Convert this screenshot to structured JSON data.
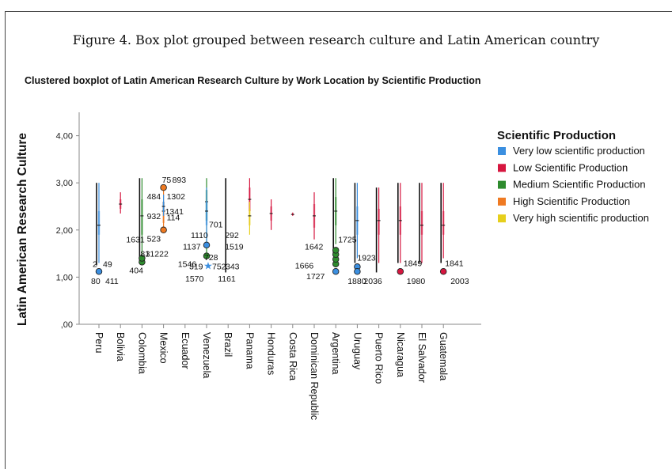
{
  "figure_caption": "Figure 4. Box plot grouped between research culture and Latin American country",
  "chart_data": {
    "type": "boxplot",
    "title": "Clustered boxplot of Latin American Research Culture by Work Location by Scientific Production",
    "ylabel": "Latin American Research Culture",
    "xlabel": "",
    "ylim": [
      0,
      4.5
    ],
    "yticks": [
      {
        "v": 0,
        "label": ",00"
      },
      {
        "v": 1,
        "label": "1,00"
      },
      {
        "v": 2,
        "label": "2,00"
      },
      {
        "v": 3,
        "label": "3,00"
      },
      {
        "v": 4,
        "label": "4,00"
      }
    ],
    "legend_title": "Scientific Production",
    "legend_position": "right",
    "series": [
      {
        "name": "Very low scientific production",
        "color": "#3b8fe0"
      },
      {
        "name": "Low Scientific Production",
        "color": "#d6163f"
      },
      {
        "name": "Medium Scientific Production",
        "color": "#2e8b2e"
      },
      {
        "name": "High Scientific Production",
        "color": "#ef7a22"
      },
      {
        "name": "Very high scientific production",
        "color": "#e6cf1c"
      }
    ],
    "categories": [
      "Peru",
      "Bolivia",
      "Colombia",
      "Mexico",
      "Ecuador",
      "Venezuela",
      "Brazil",
      "Panama",
      "Honduras",
      "Costa Rica",
      "Dominican Republic",
      "Argentina",
      "Uruguay",
      "Puerto Rico",
      "Nicaragua",
      "El Salvador",
      "Guatemala"
    ],
    "boxes": [
      {
        "country": 0,
        "series": 0,
        "min": 1.3,
        "q1": 1.9,
        "median": 2.1,
        "q3": 2.4,
        "max": 3.0
      },
      {
        "country": 1,
        "series": 1,
        "min": 2.35,
        "q1": 2.45,
        "median": 2.55,
        "q3": 2.65,
        "max": 2.8
      },
      {
        "country": 2,
        "series": 2,
        "min": 1.35,
        "q1": 1.9,
        "median": 2.3,
        "q3": 2.65,
        "max": 3.1
      },
      {
        "country": 3,
        "series": 3,
        "min": 2.0,
        "q1": 2.15,
        "median": 2.4,
        "q3": 2.6,
        "max": 2.85
      },
      {
        "country": 3,
        "series": 0,
        "min": 2.3,
        "q1": 2.4,
        "median": 2.5,
        "q3": 2.6,
        "max": 2.75
      },
      {
        "country": 5,
        "series": 2,
        "min": 1.45,
        "q1": 2.2,
        "median": 2.6,
        "q3": 2.85,
        "max": 3.1
      },
      {
        "country": 5,
        "series": 0,
        "min": 1.75,
        "q1": 2.1,
        "median": 2.4,
        "q3": 2.6,
        "max": 2.9
      },
      {
        "country": 7,
        "series": 1,
        "min": 2.1,
        "q1": 2.4,
        "median": 2.65,
        "q3": 2.9,
        "max": 3.1
      },
      {
        "country": 7,
        "series": 4,
        "min": 1.9,
        "q1": 2.1,
        "median": 2.3,
        "q3": 2.45,
        "max": 2.6
      },
      {
        "country": 8,
        "series": 1,
        "min": 2.0,
        "q1": 2.2,
        "median": 2.35,
        "q3": 2.5,
        "max": 2.65
      },
      {
        "country": 9,
        "series": 1,
        "min": 2.3,
        "q1": 2.32,
        "median": 2.33,
        "q3": 2.35,
        "max": 2.37
      },
      {
        "country": 10,
        "series": 1,
        "min": 1.8,
        "q1": 2.05,
        "median": 2.3,
        "q3": 2.55,
        "max": 2.8
      },
      {
        "country": 11,
        "series": 2,
        "min": 1.7,
        "q1": 2.1,
        "median": 2.4,
        "q3": 2.7,
        "max": 3.1
      },
      {
        "country": 12,
        "series": 0,
        "min": 1.4,
        "q1": 1.9,
        "median": 2.2,
        "q3": 2.5,
        "max": 3.0
      },
      {
        "country": 13,
        "series": 1,
        "min": 1.3,
        "q1": 1.9,
        "median": 2.2,
        "q3": 2.45,
        "max": 2.9
      },
      {
        "country": 14,
        "series": 1,
        "min": 1.3,
        "q1": 1.9,
        "median": 2.2,
        "q3": 2.5,
        "max": 3.0
      },
      {
        "country": 15,
        "series": 1,
        "min": 1.3,
        "q1": 1.9,
        "median": 2.1,
        "q3": 2.4,
        "max": 3.0
      },
      {
        "country": 16,
        "series": 1,
        "min": 1.4,
        "q1": 1.9,
        "median": 2.1,
        "q3": 2.4,
        "max": 3.0
      }
    ],
    "black_whiskers": [
      {
        "country": 0,
        "min": 1.25,
        "max": 3.0
      },
      {
        "country": 2,
        "min": 1.35,
        "max": 3.1
      },
      {
        "country": 6,
        "min": 1.1,
        "max": 3.1
      },
      {
        "country": 11,
        "min": 1.45,
        "max": 3.1
      },
      {
        "country": 12,
        "min": 1.3,
        "max": 3.0
      },
      {
        "country": 13,
        "min": 1.1,
        "max": 2.9
      },
      {
        "country": 14,
        "min": 1.3,
        "max": 3.0
      },
      {
        "country": 15,
        "min": 1.3,
        "max": 3.0
      },
      {
        "country": 16,
        "min": 1.3,
        "max": 3.0
      }
    ],
    "outliers": [
      {
        "country": 0,
        "series": 0,
        "y": 1.12,
        "shape": "circle"
      },
      {
        "country": 2,
        "series": 2,
        "y": 1.32,
        "shape": "circle"
      },
      {
        "country": 2,
        "series": 2,
        "y": 1.4,
        "shape": "circle"
      },
      {
        "country": 3,
        "series": 3,
        "y": 2.9,
        "shape": "circle"
      },
      {
        "country": 3,
        "series": 3,
        "y": 2.0,
        "shape": "circle"
      },
      {
        "country": 5,
        "series": 2,
        "y": 1.45,
        "shape": "circle"
      },
      {
        "country": 5,
        "series": 0,
        "y": 1.68,
        "shape": "circle"
      },
      {
        "country": 5,
        "series": 0,
        "y": 1.25,
        "shape": "star"
      },
      {
        "country": 11,
        "series": 2,
        "y": 1.28,
        "shape": "circle"
      },
      {
        "country": 11,
        "series": 2,
        "y": 1.38,
        "shape": "circle"
      },
      {
        "country": 11,
        "series": 2,
        "y": 1.48,
        "shape": "circle"
      },
      {
        "country": 11,
        "series": 2,
        "y": 1.57,
        "shape": "circle"
      },
      {
        "country": 11,
        "series": 0,
        "y": 1.12,
        "shape": "circle"
      },
      {
        "country": 12,
        "series": 0,
        "y": 1.22,
        "shape": "circle"
      },
      {
        "country": 12,
        "series": 0,
        "y": 1.12,
        "shape": "circle"
      },
      {
        "country": 14,
        "series": 1,
        "y": 1.12,
        "shape": "circle"
      },
      {
        "country": 16,
        "series": 1,
        "y": 1.12,
        "shape": "circle"
      }
    ],
    "annotations": [
      {
        "text": "2",
        "country": 0,
        "dx": -8,
        "y": 1.28
      },
      {
        "text": "49",
        "country": 0,
        "dx": 5,
        "y": 1.28
      },
      {
        "text": "80",
        "country": 0,
        "dx": -10,
        "y": 0.92
      },
      {
        "text": "411",
        "country": 0,
        "dx": 8,
        "y": 0.92
      },
      {
        "text": "1631",
        "country": 2,
        "dx": -20,
        "y": 1.8
      },
      {
        "text": "81",
        "country": 2,
        "dx": -2,
        "y": 1.5
      },
      {
        "text": "404",
        "country": 2,
        "dx": -16,
        "y": 1.15
      },
      {
        "text": "75",
        "country": 3,
        "dx": -2,
        "y": 3.07
      },
      {
        "text": "893",
        "country": 3,
        "dx": 11,
        "y": 3.07
      },
      {
        "text": "484",
        "country": 3,
        "dx": -21,
        "y": 2.72
      },
      {
        "text": "1302",
        "country": 3,
        "dx": 4,
        "y": 2.72
      },
      {
        "text": "932",
        "country": 3,
        "dx": -21,
        "y": 2.3
      },
      {
        "text": "1341",
        "country": 3,
        "dx": 2,
        "y": 2.4
      },
      {
        "text": "114",
        "country": 3,
        "dx": 4,
        "y": 2.27
      },
      {
        "text": "523",
        "country": 3,
        "dx": -21,
        "y": 1.82
      },
      {
        "text": "31222",
        "country": 3,
        "dx": -23,
        "y": 1.5
      },
      {
        "text": "1546",
        "country": 4,
        "dx": -9,
        "y": 1.28
      },
      {
        "text": "701",
        "country": 5,
        "dx": 3,
        "y": 2.12
      },
      {
        "text": "1110",
        "country": 5,
        "dx": -20,
        "y": 1.9
      },
      {
        "text": "1137",
        "country": 5,
        "dx": -30,
        "y": 1.65
      },
      {
        "text": "319",
        "country": 5,
        "dx": -22,
        "y": 1.23
      },
      {
        "text": "728",
        "country": 5,
        "dx": -3,
        "y": 1.43
      },
      {
        "text": "752",
        "country": 5,
        "dx": 7,
        "y": 1.23
      },
      {
        "text": "343",
        "country": 5,
        "dx": 24,
        "y": 1.23
      },
      {
        "text": "1570",
        "country": 5,
        "dx": -27,
        "y": 0.97
      },
      {
        "text": "1161",
        "country": 6,
        "dx": -13,
        "y": 0.97
      },
      {
        "text": "292",
        "country": 6,
        "dx": -4,
        "y": 1.9
      },
      {
        "text": "1519",
        "country": 6,
        "dx": -4,
        "y": 1.65
      },
      {
        "text": "1642",
        "country": 10,
        "dx": -12,
        "y": 1.65
      },
      {
        "text": "1725",
        "country": 11,
        "dx": 3,
        "y": 1.8
      },
      {
        "text": "1666",
        "country": 9,
        "dx": 3,
        "y": 1.25
      },
      {
        "text": "1727",
        "country": 10,
        "dx": -10,
        "y": 1.02
      },
      {
        "text": "1923",
        "country": 12,
        "dx": 0,
        "y": 1.42
      },
      {
        "text": "1880",
        "country": 11,
        "dx": 15,
        "y": 0.92
      },
      {
        "text": "2036",
        "country": 12,
        "dx": 8,
        "y": 0.92
      },
      {
        "text": "1849",
        "country": 14,
        "dx": 4,
        "y": 1.3
      },
      {
        "text": "1980",
        "country": 14,
        "dx": 8,
        "y": 0.92
      },
      {
        "text": "1841",
        "country": 16,
        "dx": 2,
        "y": 1.3
      },
      {
        "text": "2003",
        "country": 16,
        "dx": 9,
        "y": 0.92
      }
    ]
  }
}
